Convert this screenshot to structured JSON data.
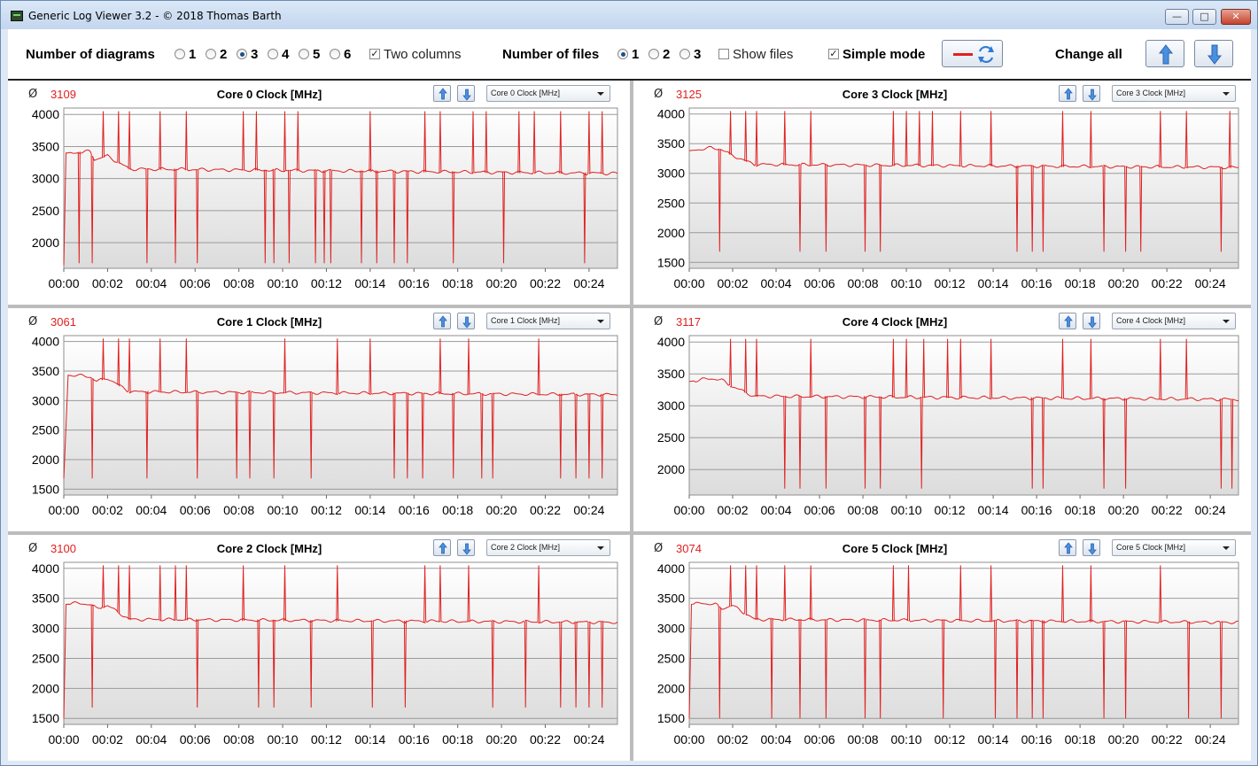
{
  "window": {
    "title": "Generic Log Viewer 3.2 - © 2018 Thomas Barth",
    "min": "—",
    "max": "□",
    "close": "✕"
  },
  "toolbar": {
    "diagrams_label": "Number of diagrams",
    "diagram_options": [
      "1",
      "2",
      "3",
      "4",
      "5",
      "6"
    ],
    "diagram_selected": "3",
    "two_columns_label": "Two columns",
    "two_columns_checked": true,
    "files_label": "Number of files",
    "file_options": [
      "1",
      "2",
      "3"
    ],
    "file_selected": "1",
    "show_files_label": "Show files",
    "show_files_checked": false,
    "simple_mode_label": "Simple mode",
    "simple_mode_checked": true,
    "change_all_label": "Change all",
    "line_color": "#e02020"
  },
  "chart_data": [
    {
      "type": "line",
      "title": "Core 0 Clock [MHz]",
      "avg_symbol": "Ø",
      "average": "3109",
      "dropdown": "Core 0 Clock [MHz]",
      "ylim": [
        1600,
        4100
      ],
      "yticks": [
        2000,
        2500,
        3000,
        3500,
        4000
      ],
      "xtick_labels": [
        "00:00",
        "00:02",
        "00:04",
        "00:06",
        "00:08",
        "00:10",
        "00:12",
        "00:14",
        "00:16",
        "00:18",
        "00:20",
        "00:22",
        "00:24"
      ],
      "xlim": [
        0,
        25.3
      ],
      "base": [
        [
          0,
          1650
        ],
        [
          0.1,
          3400
        ],
        [
          0.5,
          3400
        ],
        [
          1,
          3420
        ],
        [
          1.2,
          3420
        ],
        [
          1.4,
          3300
        ],
        [
          2,
          3350
        ],
        [
          3,
          3150
        ],
        [
          25.3,
          3080
        ]
      ],
      "spikes": [
        1.8,
        2.5,
        3.0,
        4.4,
        5.6,
        8.2,
        8.8,
        10.1,
        10.7,
        14.0,
        16.5,
        17.2,
        18.7,
        19.3,
        20.8,
        21.5,
        22.7,
        24.0,
        24.6
      ],
      "spike_val": 4050,
      "dips": [
        0.7,
        1.3,
        3.8,
        5.1,
        6.1,
        9.2,
        9.6,
        10.3,
        11.5,
        11.9,
        12.2,
        13.6,
        14.3,
        15.1,
        15.7,
        17.8,
        20.1,
        23.8
      ],
      "dip_val": 1680
    },
    {
      "type": "line",
      "title": "Core 3 Clock [MHz]",
      "avg_symbol": "Ø",
      "average": "3125",
      "dropdown": "Core 3 Clock [MHz]",
      "ylim": [
        1400,
        4100
      ],
      "yticks": [
        1500,
        2000,
        2500,
        3000,
        3500,
        4000
      ],
      "xtick_labels": [
        "00:00",
        "00:02",
        "00:04",
        "00:06",
        "00:08",
        "00:10",
        "00:12",
        "00:14",
        "00:16",
        "00:18",
        "00:20",
        "00:22",
        "00:24"
      ],
      "xlim": [
        0,
        25.3
      ],
      "base": [
        [
          0,
          3380
        ],
        [
          1,
          3430
        ],
        [
          1.5,
          3400
        ],
        [
          2,
          3300
        ],
        [
          3,
          3150
        ],
        [
          25.3,
          3100
        ]
      ],
      "spikes": [
        1.9,
        2.6,
        3.1,
        4.4,
        5.6,
        9.4,
        10.0,
        10.6,
        11.2,
        12.5,
        13.9,
        17.2,
        18.5,
        21.7,
        22.9,
        24.9
      ],
      "spike_val": 4050,
      "dips": [
        1.4,
        5.1,
        6.3,
        8.1,
        8.8,
        15.1,
        15.8,
        16.3,
        19.1,
        20.1,
        20.8,
        24.5
      ],
      "dip_val": 1680
    },
    {
      "type": "line",
      "title": "Core 1 Clock [MHz]",
      "avg_symbol": "Ø",
      "average": "3061",
      "dropdown": "Core 1 Clock [MHz]",
      "ylim": [
        1400,
        4100
      ],
      "yticks": [
        1500,
        2000,
        2500,
        3000,
        3500,
        4000
      ],
      "xtick_labels": [
        "00:00",
        "00:02",
        "00:04",
        "00:06",
        "00:08",
        "00:10",
        "00:12",
        "00:14",
        "00:16",
        "00:18",
        "00:20",
        "00:22",
        "00:24"
      ],
      "xlim": [
        0,
        25.3
      ],
      "base": [
        [
          0,
          1680
        ],
        [
          0.2,
          3430
        ],
        [
          0.6,
          3430
        ],
        [
          1.2,
          3400
        ],
        [
          1.5,
          3330
        ],
        [
          2,
          3380
        ],
        [
          3,
          3150
        ],
        [
          25.3,
          3100
        ]
      ],
      "spikes": [
        1.8,
        2.5,
        3.0,
        4.4,
        5.6,
        10.1,
        12.5,
        14.0,
        17.2,
        18.5,
        21.7
      ],
      "spike_val": 4050,
      "dips": [
        1.3,
        3.8,
        6.1,
        7.9,
        8.5,
        9.6,
        11.3,
        15.1,
        15.7,
        16.4,
        17.8,
        19.1,
        19.6,
        22.7,
        23.4,
        24.0,
        24.6
      ],
      "dip_val": 1680
    },
    {
      "type": "line",
      "title": "Core 4 Clock [MHz]",
      "avg_symbol": "Ø",
      "average": "3117",
      "dropdown": "Core 4 Clock [MHz]",
      "ylim": [
        1600,
        4100
      ],
      "yticks": [
        2000,
        2500,
        3000,
        3500,
        4000
      ],
      "xtick_labels": [
        "00:00",
        "00:02",
        "00:04",
        "00:06",
        "00:08",
        "00:10",
        "00:12",
        "00:14",
        "00:16",
        "00:18",
        "00:20",
        "00:22",
        "00:24"
      ],
      "xlim": [
        0,
        25.3
      ],
      "base": [
        [
          0,
          3380
        ],
        [
          1,
          3430
        ],
        [
          1.5,
          3400
        ],
        [
          2,
          3300
        ],
        [
          3,
          3150
        ],
        [
          25.3,
          3100
        ]
      ],
      "spikes": [
        1.9,
        2.6,
        3.1,
        5.6,
        9.4,
        10.0,
        10.8,
        11.9,
        12.5,
        13.9,
        17.2,
        18.5,
        21.7,
        22.9
      ],
      "spike_val": 4050,
      "dips": [
        4.4,
        5.1,
        6.3,
        8.1,
        8.8,
        10.7,
        15.8,
        16.3,
        19.1,
        20.1,
        24.5,
        25.0
      ],
      "dip_val": 1700
    },
    {
      "type": "line",
      "title": "Core 2 Clock [MHz]",
      "avg_symbol": "Ø",
      "average": "3100",
      "dropdown": "Core 2 Clock [MHz]",
      "ylim": [
        1400,
        4100
      ],
      "yticks": [
        1500,
        2000,
        2500,
        3000,
        3500,
        4000
      ],
      "xtick_labels": [
        "00:00",
        "00:02",
        "00:04",
        "00:06",
        "00:08",
        "00:10",
        "00:12",
        "00:14",
        "00:16",
        "00:18",
        "00:20",
        "00:22",
        "00:24"
      ],
      "xlim": [
        0,
        25.3
      ],
      "base": [
        [
          0,
          1500
        ],
        [
          0.1,
          3400
        ],
        [
          0.6,
          3420
        ],
        [
          1.2,
          3400
        ],
        [
          1.5,
          3330
        ],
        [
          2,
          3380
        ],
        [
          3,
          3150
        ],
        [
          25.3,
          3100
        ]
      ],
      "spikes": [
        1.8,
        2.5,
        3.0,
        4.4,
        5.1,
        5.6,
        8.2,
        10.1,
        12.5,
        16.5,
        17.2,
        18.5,
        21.7
      ],
      "spike_val": 4050,
      "dips": [
        1.3,
        6.1,
        8.9,
        9.6,
        11.3,
        14.1,
        15.6,
        19.6,
        21.1,
        22.7,
        23.4,
        24.0,
        24.6
      ],
      "dip_val": 1680
    },
    {
      "type": "line",
      "title": "Core 5 Clock [MHz]",
      "avg_symbol": "Ø",
      "average": "3074",
      "dropdown": "Core 5 Clock [MHz]",
      "ylim": [
        1400,
        4100
      ],
      "yticks": [
        1500,
        2000,
        2500,
        3000,
        3500,
        4000
      ],
      "xtick_labels": [
        "00:00",
        "00:02",
        "00:04",
        "00:06",
        "00:08",
        "00:10",
        "00:12",
        "00:14",
        "00:16",
        "00:18",
        "00:20",
        "00:22",
        "00:24"
      ],
      "xlim": [
        0,
        25.3
      ],
      "base": [
        [
          0,
          1500
        ],
        [
          0.1,
          3400
        ],
        [
          0.6,
          3420
        ],
        [
          1.2,
          3400
        ],
        [
          1.5,
          3330
        ],
        [
          2,
          3380
        ],
        [
          3,
          3150
        ],
        [
          25.3,
          3100
        ]
      ],
      "spikes": [
        1.9,
        2.6,
        3.1,
        4.4,
        5.6,
        9.4,
        10.1,
        12.5,
        13.9,
        17.2,
        18.5,
        21.7
      ],
      "spike_val": 4050,
      "dips": [
        1.4,
        3.8,
        5.1,
        6.3,
        8.1,
        8.8,
        11.7,
        14.1,
        15.1,
        15.8,
        16.3,
        19.1,
        20.1,
        23.0,
        24.5
      ],
      "dip_val": 1500
    }
  ]
}
